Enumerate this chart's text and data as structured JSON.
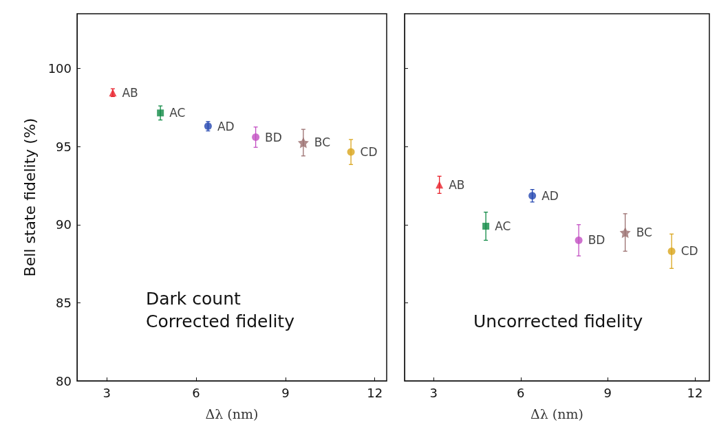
{
  "chart_data": [
    {
      "type": "scatter",
      "ylabel": "Bell state fidelity (%)",
      "xlabel": "Δλ (nm)",
      "xlim": [
        2,
        12.4
      ],
      "xticks": [
        3,
        6,
        9,
        12
      ],
      "ylim": [
        80,
        103.5
      ],
      "yticks": [
        80,
        85,
        90,
        95,
        100
      ],
      "grid": false,
      "legend": false,
      "annotations": [
        "Dark count\nCorrected fidelity"
      ],
      "series": [
        {
          "name": "AB",
          "color": "#e8202a",
          "marker": "triangle",
          "x": [
            3.2
          ],
          "values": [
            98.45
          ],
          "errors": [
            0.25
          ]
        },
        {
          "name": "AC",
          "color": "#0f8a45",
          "marker": "square",
          "x": [
            4.8
          ],
          "values": [
            97.15
          ],
          "errors": [
            0.45
          ]
        },
        {
          "name": "AD",
          "color": "#2346b0",
          "marker": "circle",
          "x": [
            6.4
          ],
          "values": [
            96.3
          ],
          "errors": [
            0.3
          ]
        },
        {
          "name": "BD",
          "color": "#c24fc2",
          "marker": "circle",
          "x": [
            8.0
          ],
          "values": [
            95.6
          ],
          "errors": [
            0.65
          ]
        },
        {
          "name": "BC",
          "color": "#9a6e6e",
          "marker": "star",
          "x": [
            9.6
          ],
          "values": [
            95.25
          ],
          "errors": [
            0.85
          ]
        },
        {
          "name": "CD",
          "color": "#d9a51c",
          "marker": "circle",
          "x": [
            11.2
          ],
          "values": [
            94.65
          ],
          "errors": [
            0.8
          ]
        }
      ]
    },
    {
      "type": "scatter",
      "xlabel": "Δλ (nm)",
      "xlim": [
        2,
        12.5
      ],
      "xticks": [
        3,
        6,
        9,
        12
      ],
      "ylim": [
        80,
        103.5
      ],
      "yticks": [
        80,
        85,
        90,
        95,
        100
      ],
      "tick_labels": "x",
      "grid": false,
      "legend": false,
      "annotations": [
        "Uncorrected fidelity"
      ],
      "series": [
        {
          "name": "AB",
          "color": "#e8202a",
          "marker": "triangle",
          "x": [
            3.2
          ],
          "values": [
            92.55
          ],
          "errors": [
            0.55
          ]
        },
        {
          "name": "AC",
          "color": "#0f8a45",
          "marker": "square",
          "x": [
            4.8
          ],
          "values": [
            89.9
          ],
          "errors": [
            0.9
          ]
        },
        {
          "name": "AD",
          "color": "#2346b0",
          "marker": "circle",
          "x": [
            6.4
          ],
          "values": [
            91.85
          ],
          "errors": [
            0.4
          ]
        },
        {
          "name": "BD",
          "color": "#c24fc2",
          "marker": "circle",
          "x": [
            8.0
          ],
          "values": [
            89.0
          ],
          "errors": [
            1.0
          ]
        },
        {
          "name": "BC",
          "color": "#9a6e6e",
          "marker": "star",
          "x": [
            9.6
          ],
          "values": [
            89.5
          ],
          "errors": [
            1.2
          ]
        },
        {
          "name": "CD",
          "color": "#d9a51c",
          "marker": "circle",
          "x": [
            11.2
          ],
          "values": [
            88.3
          ],
          "errors": [
            1.1
          ]
        }
      ]
    }
  ]
}
